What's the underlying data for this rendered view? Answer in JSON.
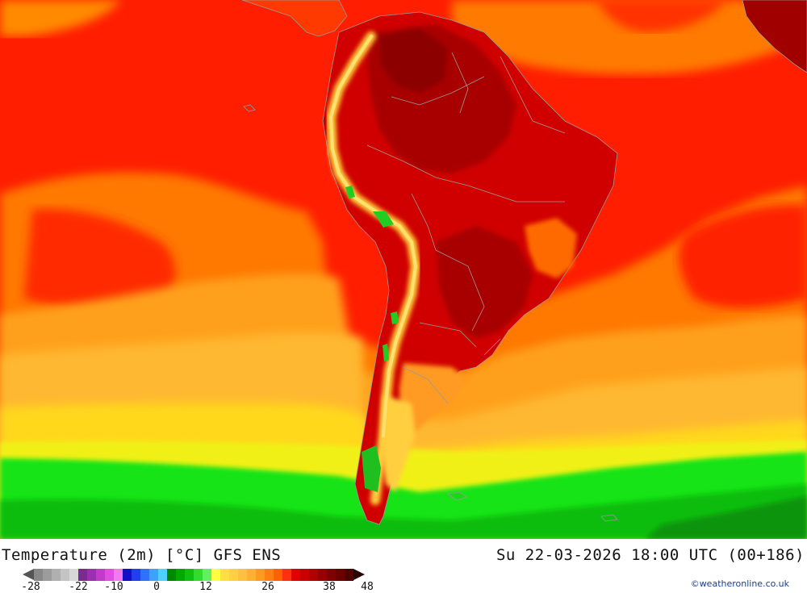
{
  "map": {
    "title": "Temperature (2m) [°C] GFS ENS",
    "valid_time": "Su 22-03-2026 18:00 UTC (00+186)",
    "credit": "©weatheronline.co.uk",
    "region": "South America",
    "colors": {
      "ocean_very_hot": "#ff1500",
      "ocean_hot": "#ff3300",
      "ocean_warm": "#ff7a00",
      "ocean_mild": "#ffa31a",
      "ocean_cool": "#ffd21a",
      "ocean_cold_yellow": "#f2ee10",
      "ocean_green": "#19e81a",
      "ocean_deep_green": "#0cc40c",
      "land_hot": "#d40000",
      "land_very_hot": "#b00000",
      "land_extreme": "#8a0000",
      "andes_cool": "#ffcf3a",
      "andes_cold": "#22cc22",
      "border": "#9a9a9a"
    }
  },
  "legend": {
    "tick_labels": [
      "-28",
      "-22",
      "-10",
      "0",
      "12",
      "26",
      "38",
      "48"
    ],
    "swatches": [
      "#888888",
      "#9c9c9c",
      "#b0b0b0",
      "#c4c4c4",
      "#d8d8d8",
      "#7a2c8c",
      "#9b2fb0",
      "#c03cc8",
      "#e04ee0",
      "#f07af0",
      "#1010c8",
      "#2040f0",
      "#3070ff",
      "#40a0ff",
      "#50d0ff",
      "#008800",
      "#00a800",
      "#10c010",
      "#30dc30",
      "#60f060",
      "#ffff40",
      "#ffe040",
      "#ffd040",
      "#ffc040",
      "#ffb030",
      "#ff9a20",
      "#ff8010",
      "#ff6000",
      "#ff3010",
      "#e00000",
      "#c80000",
      "#b00000",
      "#980000",
      "#800000",
      "#6a0000",
      "#500000"
    ]
  }
}
